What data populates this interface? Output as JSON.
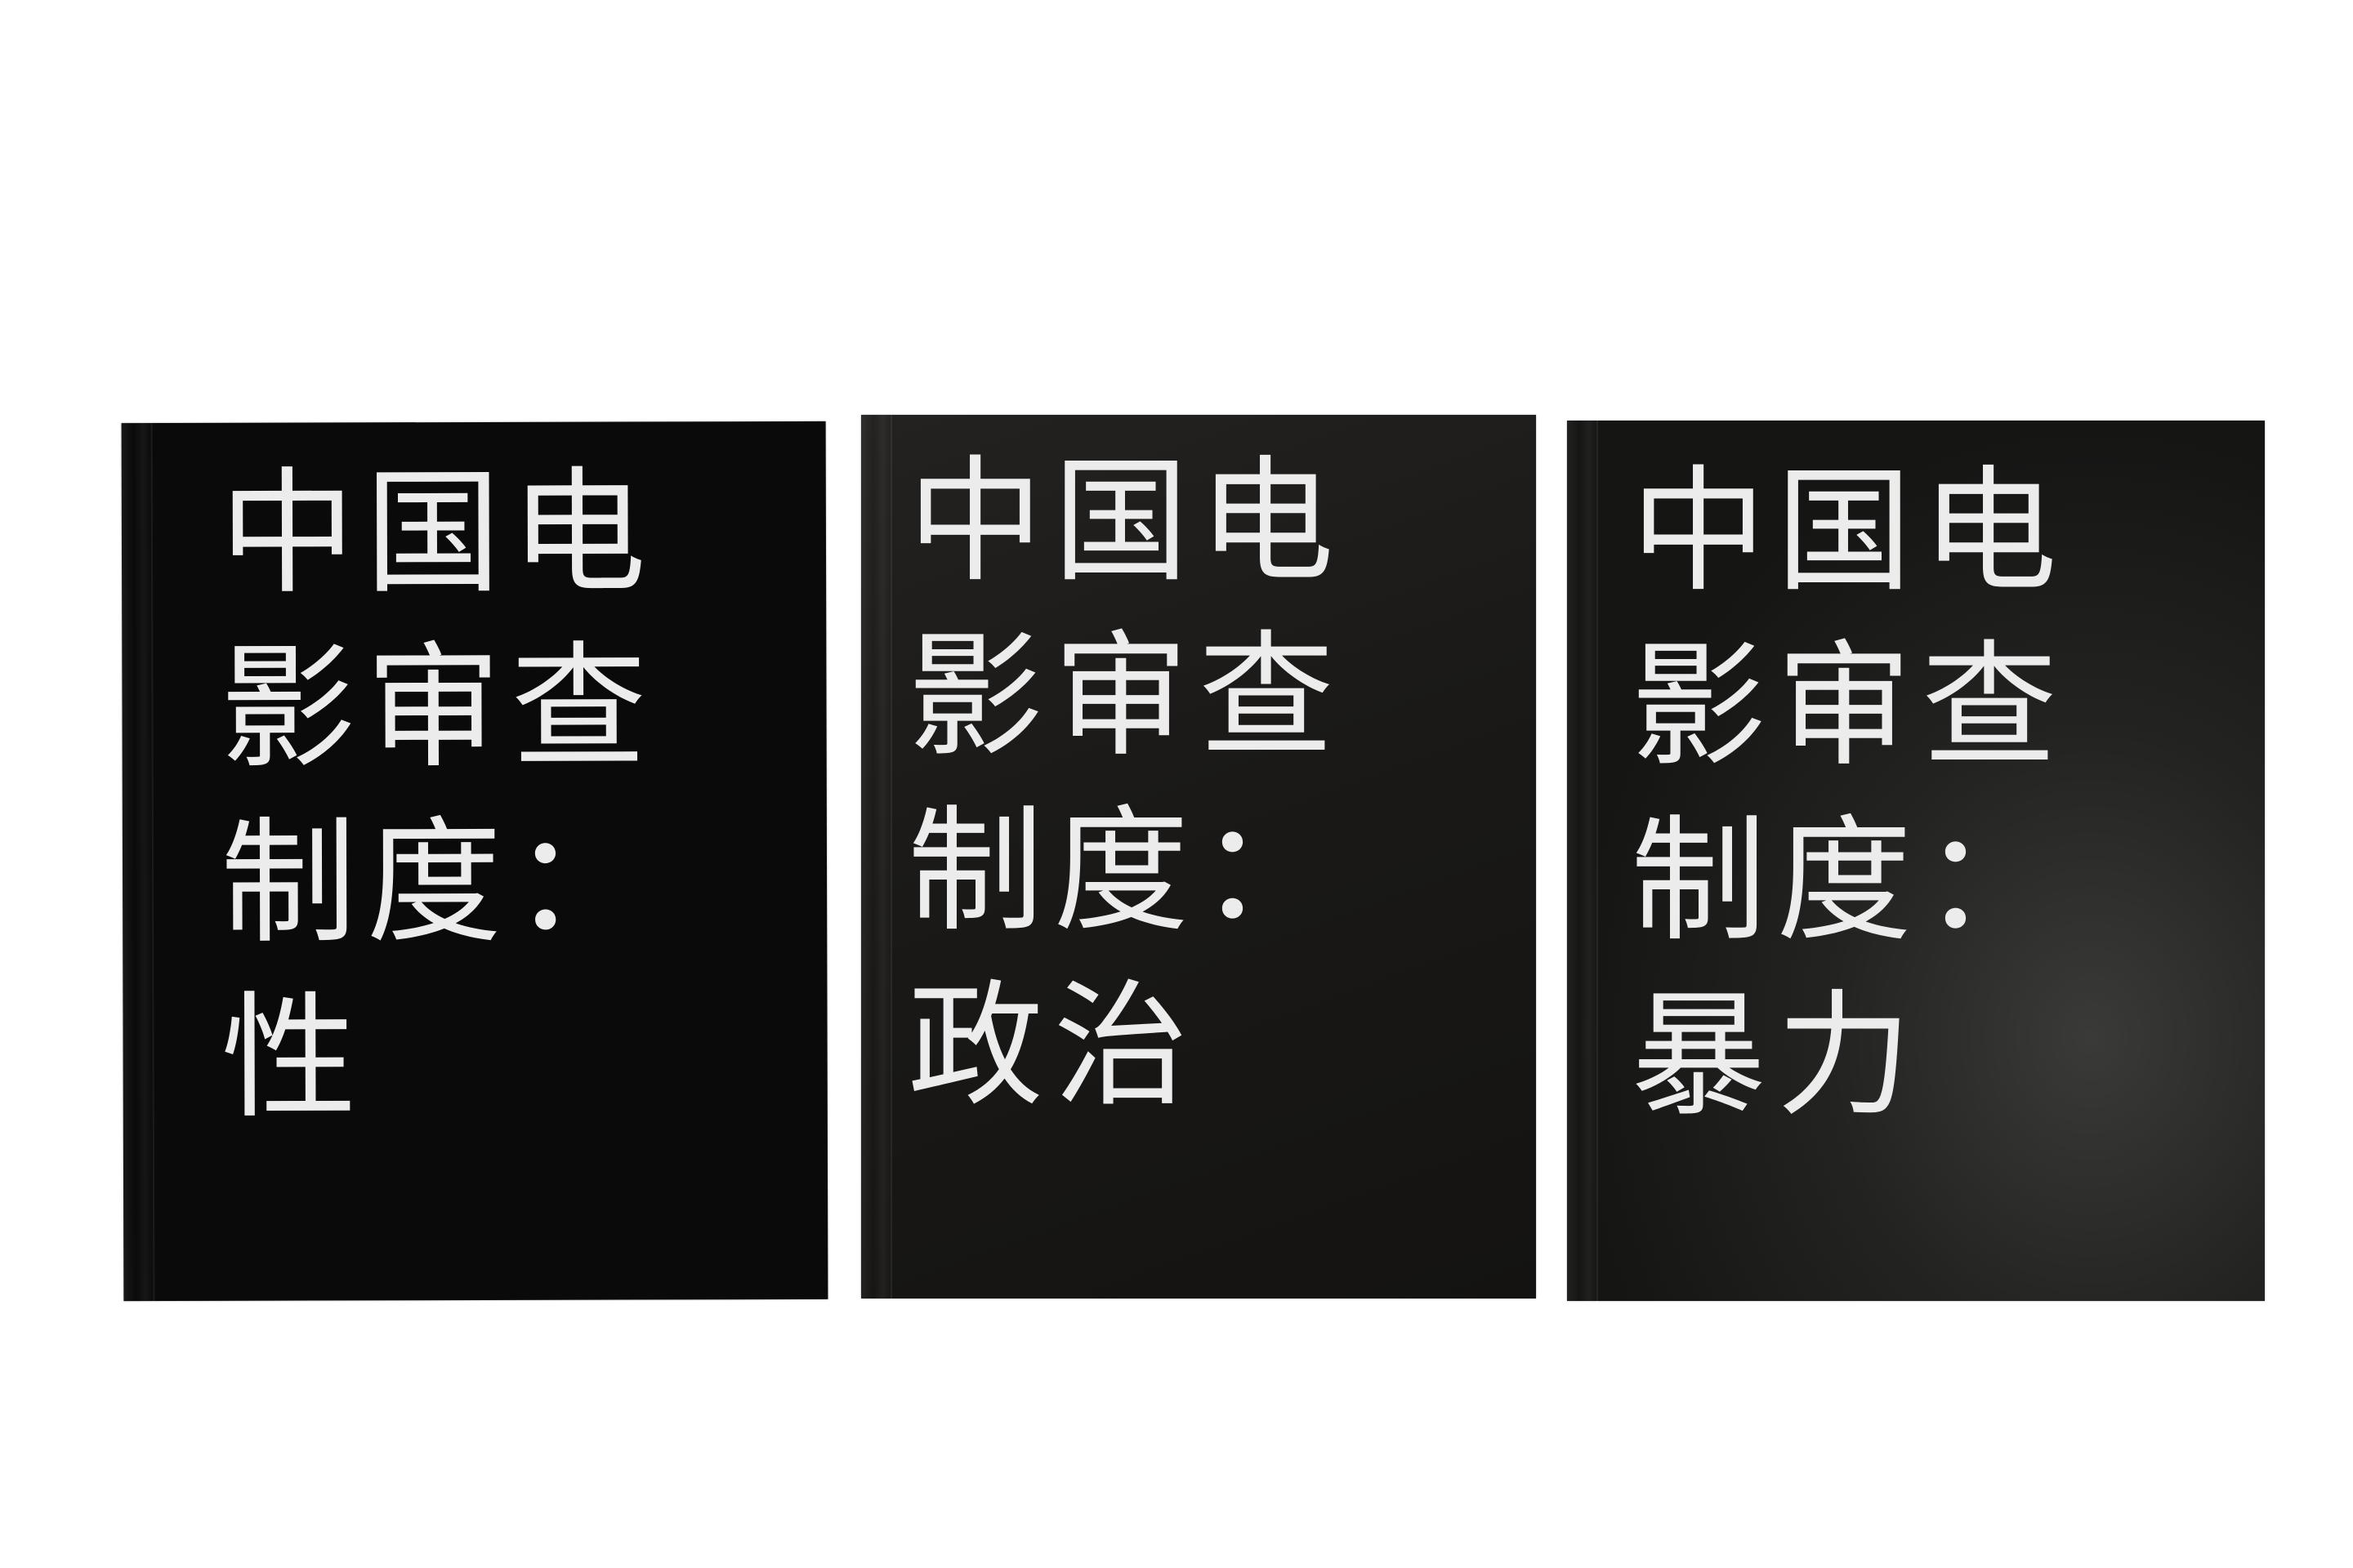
{
  "books": [
    {
      "lines": [
        "中国电",
        "影审查",
        "制度：",
        "性"
      ]
    },
    {
      "lines": [
        "中国电",
        "影审查",
        "制度：",
        "政治"
      ]
    },
    {
      "lines": [
        "中国电",
        "影审查",
        "制度：",
        "暴力"
      ]
    }
  ],
  "colors": {
    "background": "#ffffff",
    "cover": "#0a0a0a",
    "title_text": "#ececec"
  }
}
